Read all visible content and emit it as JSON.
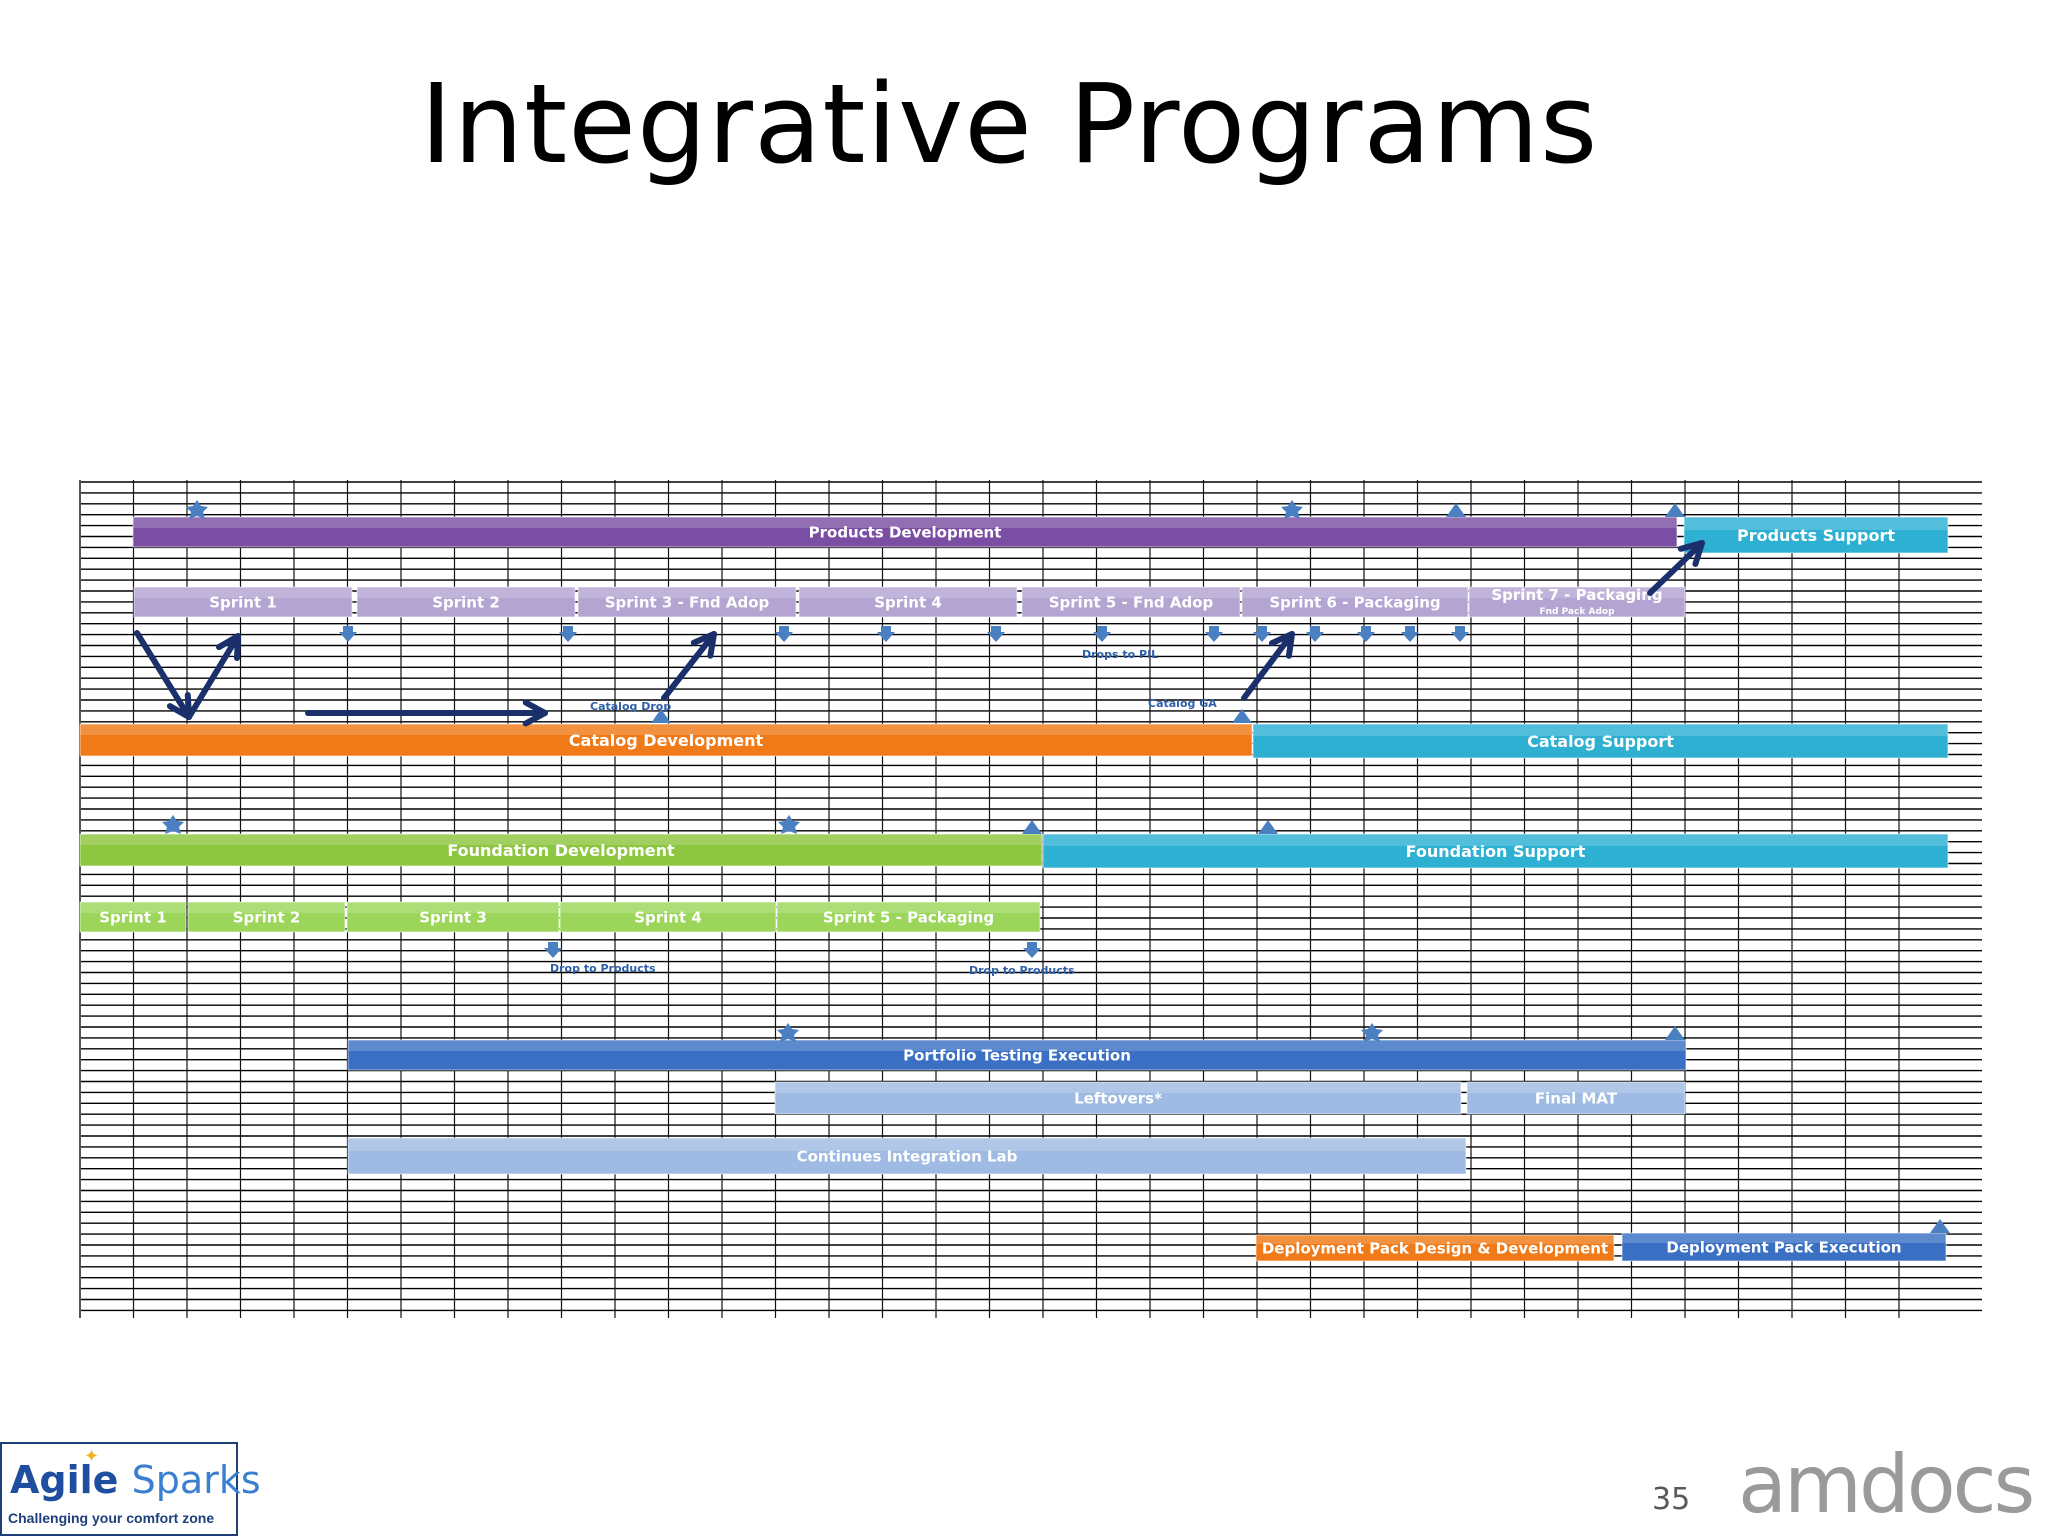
{
  "slide": {
    "title": "Integrative Programs",
    "page_number": "35"
  },
  "logos": {
    "left_name_a": "Agile",
    "left_name_b": "Sparks",
    "left_tagline": "Challenging your comfort zone",
    "right": "amdocs"
  },
  "colors": {
    "purple": "#7a4fa3",
    "lavender": "#b4a4d2",
    "orange": "#f07a17",
    "teal": "#2eb0d3",
    "green": "#8dc63f",
    "light_green": "#9bd65a",
    "blue": "#3a6fc4",
    "light_blue": "#9fbbe3",
    "arrow": "#1b2f6b",
    "marker": "#4a7fc1"
  },
  "bars": [
    {
      "label": "Products Development",
      "color": "purple"
    },
    {
      "label": "Products  Support",
      "color": "teal"
    },
    {
      "label": "Sprint 1",
      "color": "lavender"
    },
    {
      "label": "Sprint 2",
      "color": "lavender"
    },
    {
      "label": "Sprint 3 - Fnd Adop",
      "color": "lavender"
    },
    {
      "label": "Sprint 4",
      "color": "lavender"
    },
    {
      "label": "Sprint 5 -  Fnd Adop",
      "color": "lavender"
    },
    {
      "label": "Sprint 6 - Packaging",
      "color": "lavender"
    },
    {
      "label": "Sprint 7 - Packaging",
      "sublabel": "Fnd  Pack Adop",
      "color": "lavender"
    },
    {
      "label": "Catalog Development",
      "color": "orange"
    },
    {
      "label": "Catalog Support",
      "color": "teal"
    },
    {
      "label": "Foundation Development",
      "color": "green"
    },
    {
      "label": "Foundation Support",
      "color": "teal"
    },
    {
      "label": "Sprint 1",
      "color": "light_green"
    },
    {
      "label": "Sprint 2",
      "color": "light_green"
    },
    {
      "label": "Sprint 3",
      "color": "light_green"
    },
    {
      "label": "Sprint 4",
      "color": "light_green"
    },
    {
      "label": "Sprint 5 - Packaging",
      "color": "light_green"
    },
    {
      "label": "Portfolio  Testing Execution",
      "color": "blue"
    },
    {
      "label": "Leftovers*",
      "color": "light_blue"
    },
    {
      "label": "Final MAT",
      "color": "light_blue"
    },
    {
      "label": "Continues Integration Lab",
      "color": "light_blue"
    },
    {
      "label": "Deployment Pack Design & Development",
      "color": "orange"
    },
    {
      "label": "Deployment Pack Execution",
      "color": "blue"
    }
  ],
  "notes": [
    {
      "label": "Drops to PIL"
    },
    {
      "label": "Catalog Drop"
    },
    {
      "label": "Catalog GA"
    },
    {
      "label": "Drop to Products"
    },
    {
      "label": "Drop to Products"
    }
  ]
}
